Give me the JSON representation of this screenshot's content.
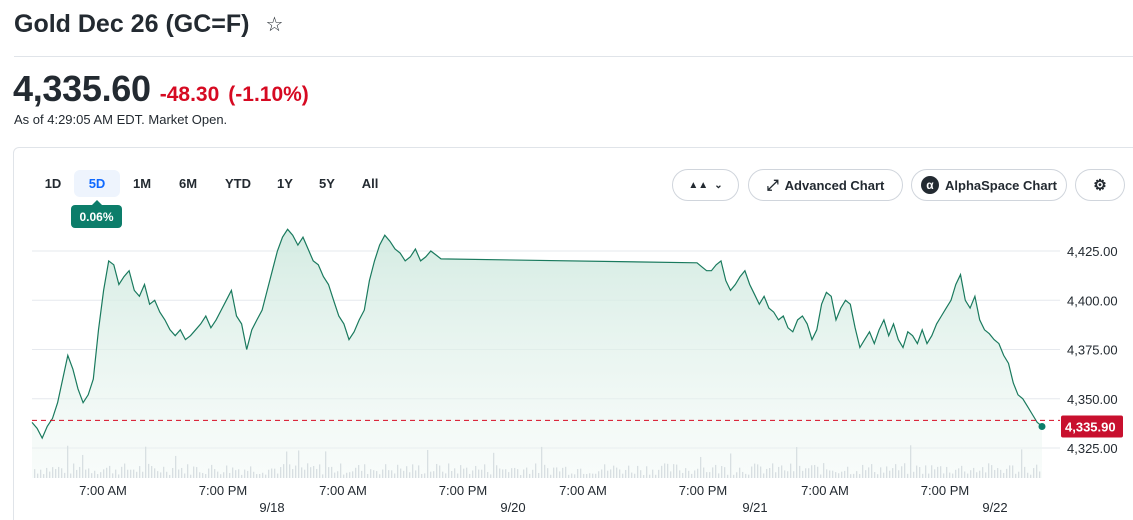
{
  "header": {
    "title": "Gold Dec 26 (GC=F)",
    "star_icon": "star-outline-icon",
    "price": "4,335.60",
    "change": "-48.30",
    "change_pct": "(-1.10%)",
    "as_of": "As of 4:29:05 AM EDT. Market Open."
  },
  "toolbar": {
    "ranges": [
      "1D",
      "5D",
      "1M",
      "6M",
      "YTD",
      "1Y",
      "5Y",
      "All"
    ],
    "active_range": "5D",
    "range_change_badge": "0.06%",
    "chart_type_icon": "mountain-icon",
    "chevron_icon": "chevron-down-icon",
    "advanced_chart_label": "Advanced Chart",
    "advanced_chart_icon": "expand-icon",
    "alphaspace_label": "AlphaSpace Chart",
    "alphaspace_icon": "alpha-icon",
    "settings_icon": "gear-icon"
  },
  "colors": {
    "line": "#1a7a5e",
    "fill": "#dff0ea",
    "negative": "#d60a22",
    "badge": "#0c7d6a",
    "last_price_box": "#c8102e",
    "active_tab": "#0f69ff"
  },
  "chart_data": {
    "type": "area",
    "yticks": [
      "4,425.00",
      "4,400.00",
      "4,375.00",
      "4,350.00",
      "4,325.00"
    ],
    "ylim": [
      4320,
      4440
    ],
    "x_time_labels": [
      "7:00 AM",
      "7:00 PM",
      "7:00 AM",
      "7:00 PM",
      "7:00 AM",
      "7:00 PM",
      "7:00 AM",
      "7:00 PM"
    ],
    "x_date_labels": [
      "9/18",
      "9/20",
      "9/21",
      "9/22"
    ],
    "reference_line": 4339,
    "last_price_label": "4,335.90",
    "last_price": 4335.9,
    "series": [
      {
        "values": [
          4338,
          4335,
          4330,
          4336,
          4340,
          4348,
          4360,
          4372,
          4365,
          4355,
          4348,
          4352,
          4360,
          4385,
          4405,
          4420,
          4418,
          4408,
          4412,
          4415,
          4405,
          4402,
          4408,
          4398,
          4400,
          4394,
          4390,
          4385,
          4382,
          4385,
          4380,
          4382,
          4385,
          4388,
          4392,
          4386,
          4390,
          4395,
          4400,
          4405,
          4392,
          4388,
          4375,
          4385,
          4390,
          4395,
          4405,
          4415,
          4425,
          4432,
          4436,
          4433,
          4428,
          4432,
          4426,
          4420,
          4418,
          4412,
          4408,
          4400,
          4392,
          4388,
          4380,
          4384,
          4390,
          4395,
          4410,
          4420,
          4428,
          4433,
          4430,
          4426,
          4424,
          4420,
          4422,
          4426,
          4420,
          4422,
          4425,
          4423,
          4421,
          4419,
          4417,
          4415,
          4415,
          4418,
          4420,
          4410,
          4405,
          4408,
          4412,
          4415,
          4408,
          4403,
          4398,
          4402,
          4396,
          4394,
          4390,
          4392,
          4386,
          4384,
          4390,
          4392,
          4388,
          4380,
          4385,
          4398,
          4404,
          4402,
          4390,
          4396,
          4400,
          4398,
          4386,
          4376,
          4380,
          4384,
          4378,
          4385,
          4390,
          4382,
          4388,
          4380,
          4376,
          4384,
          4382,
          4378,
          4385,
          4378,
          4382,
          4388,
          4392,
          4396,
          4400,
          4408,
          4413,
          4400,
          4396,
          4402,
          4390,
          4385,
          4383,
          4380,
          4378,
          4372,
          4368,
          4358,
          4352,
          4350,
          4346,
          4342,
          4338,
          4336
        ]
      }
    ]
  }
}
